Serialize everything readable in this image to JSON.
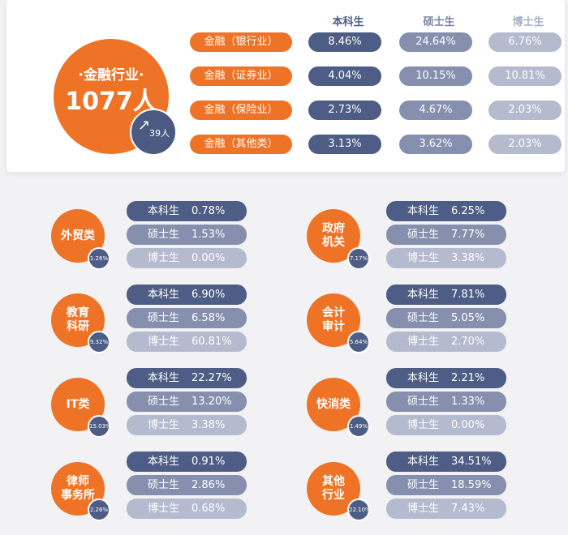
{
  "finance": {
    "title_line1": "·金融行业·",
    "title_line2": "1077人",
    "growth": "39人",
    "growth_arrow": "↗",
    "headers": [
      "本科生",
      "硕士生",
      "博士生"
    ],
    "rows": [
      {
        "label": "金融（银行业）",
        "values": [
          "8.46%",
          "24.64%",
          "6.76%"
        ]
      },
      {
        "label": "金融（证券业）",
        "values": [
          "4.04%",
          "10.15%",
          "10.81%"
        ]
      },
      {
        "label": "金融（保险业）",
        "values": [
          "2.73%",
          "4.67%",
          "2.03%"
        ]
      },
      {
        "label": "金融（其他类）",
        "values": [
          "3.13%",
          "3.62%",
          "2.03%"
        ]
      }
    ]
  },
  "level_labels": [
    "本科生",
    "硕士生",
    "博士生"
  ],
  "categories": [
    {
      "name_lines": [
        "外贸类"
      ],
      "share": "1.26%",
      "values": [
        "0.78%",
        "1.53%",
        "0.00%"
      ]
    },
    {
      "name_lines": [
        "政府",
        "机关"
      ],
      "share": "7.17%",
      "values": [
        "6.25%",
        "7.77%",
        "3.38%"
      ]
    },
    {
      "name_lines": [
        "教育",
        "科研"
      ],
      "share": "9.32%",
      "values": [
        "6.90%",
        "6.58%",
        "60.81%"
      ]
    },
    {
      "name_lines": [
        "会计",
        "审计"
      ],
      "share": "5.64%",
      "values": [
        "7.81%",
        "5.05%",
        "2.70%"
      ]
    },
    {
      "name_lines": [
        "IT类"
      ],
      "share": "15.03%",
      "values": [
        "22.27%",
        "13.20%",
        "3.38%"
      ]
    },
    {
      "name_lines": [
        "快消类"
      ],
      "share": "1.49%",
      "values": [
        "2.21%",
        "1.33%",
        "0.00%"
      ]
    },
    {
      "name_lines": [
        "律师",
        "事务所"
      ],
      "share": "2.26%",
      "values": [
        "0.91%",
        "2.86%",
        "0.68%"
      ]
    },
    {
      "name_lines": [
        "其他",
        "行业"
      ],
      "share": "22.10%",
      "values": [
        "34.51%",
        "18.59%",
        "7.43%"
      ]
    }
  ],
  "colors": {
    "orange": "#ee7326",
    "dark": "#4e5d85",
    "mid": "#8690ae",
    "light": "#b5bbcf"
  }
}
